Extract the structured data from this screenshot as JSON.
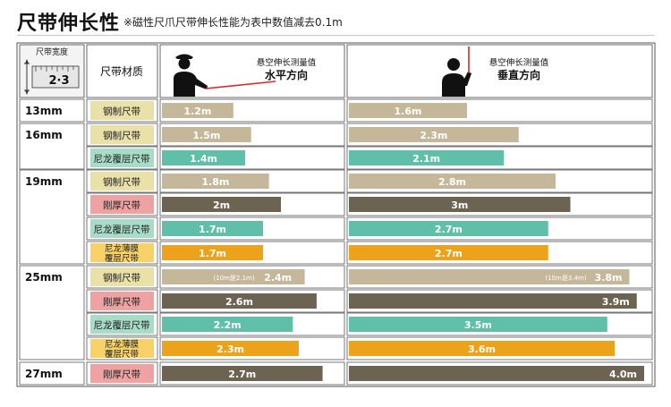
{
  "title": "尺带伸长性",
  "subtitle": "※磁性尺爪尺带伸长性能为表中数值减去0.1m",
  "corner_label": "尺带宽度",
  "corner_digits": "2·3",
  "material_header": "尺带材质",
  "colors": {
    "steel": "#c5b89a",
    "nylon": "#5fbfa8",
    "thick": "#6d6352",
    "film": "#eda21c",
    "label_steel": "#e9e1a8",
    "label_nylon": "#a7dcc9",
    "label_thick": "#eea2a2",
    "label_film": "#f8d266"
  },
  "chart_data": {
    "type": "table",
    "columns": [
      {
        "line1": "悬空伸长测量值",
        "line2": "水平方向"
      },
      {
        "line1": "悬空伸长测量值",
        "line2": "垂直方向"
      }
    ],
    "rows": [
      {
        "width": "13mm",
        "material": [
          "钢制尺带"
        ],
        "kind": "steel",
        "horizontal": 1.2,
        "vertical": 1.6,
        "h_label": "1.2m",
        "v_label": "1.6m"
      },
      {
        "width": "16mm",
        "material": [
          "钢制尺带"
        ],
        "kind": "steel",
        "horizontal": 1.5,
        "vertical": 2.3,
        "h_label": "1.5m",
        "v_label": "2.3m"
      },
      {
        "width": "",
        "material": [
          "尼龙覆层尺带"
        ],
        "kind": "nylon",
        "horizontal": 1.4,
        "vertical": 2.1,
        "h_label": "1.4m",
        "v_label": "2.1m"
      },
      {
        "width": "19mm",
        "material": [
          "钢制尺带"
        ],
        "kind": "steel",
        "horizontal": 1.8,
        "vertical": 2.8,
        "h_label": "1.8m",
        "v_label": "2.8m"
      },
      {
        "width": "",
        "material": [
          "刚厚尺带"
        ],
        "kind": "thick",
        "horizontal": 2.0,
        "vertical": 3.0,
        "h_label": "2m",
        "v_label": "3m"
      },
      {
        "width": "",
        "material": [
          "尼龙覆层尺带"
        ],
        "kind": "nylon",
        "horizontal": 1.7,
        "vertical": 2.7,
        "h_label": "1.7m",
        "v_label": "2.7m"
      },
      {
        "width": "",
        "material": [
          "尼龙薄膜",
          "覆层尺带"
        ],
        "kind": "film",
        "horizontal": 1.7,
        "vertical": 2.7,
        "h_label": "1.7m",
        "v_label": "2.7m"
      },
      {
        "width": "25mm",
        "material": [
          "钢制尺带"
        ],
        "kind": "steel",
        "horizontal": 2.4,
        "vertical": 3.8,
        "h_label": "2.4m",
        "v_label": "3.8m",
        "h_note": "(10m是2.1m)",
        "v_note": "(10m是3.4m)"
      },
      {
        "width": "",
        "material": [
          "刚厚尺带"
        ],
        "kind": "thick",
        "horizontal": 2.6,
        "vertical": 3.9,
        "h_label": "2.6m",
        "v_label": "3.9m"
      },
      {
        "width": "",
        "material": [
          "尼龙覆层尺带"
        ],
        "kind": "nylon",
        "horizontal": 2.2,
        "vertical": 3.5,
        "h_label": "2.2m",
        "v_label": "3.5m"
      },
      {
        "width": "",
        "material": [
          "尼龙薄膜",
          "覆层尺带"
        ],
        "kind": "film",
        "horizontal": 2.3,
        "vertical": 3.6,
        "h_label": "2.3m",
        "v_label": "3.6m"
      },
      {
        "width": "27mm",
        "material": [
          "刚厚尺带"
        ],
        "kind": "thick",
        "horizontal": 2.7,
        "vertical": 4.0,
        "h_label": "2.7m",
        "v_label": "4.0m"
      }
    ]
  }
}
